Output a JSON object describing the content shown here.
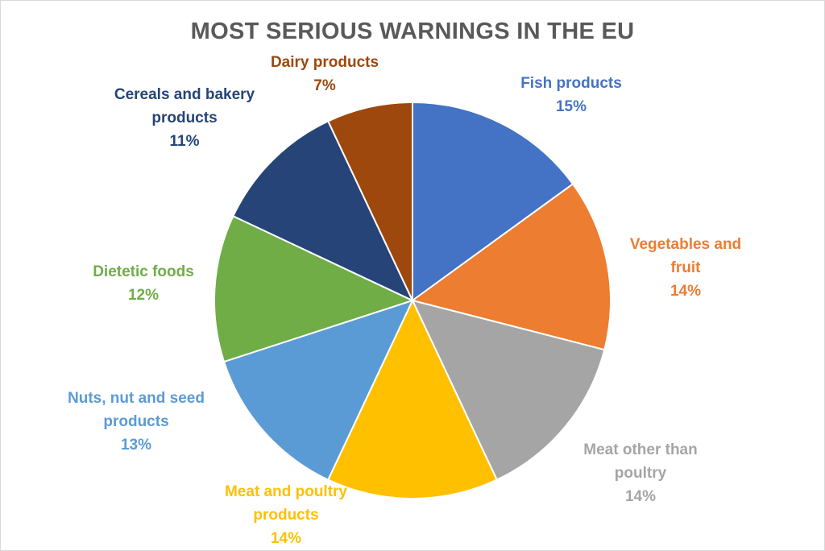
{
  "chart_data": {
    "type": "pie",
    "title": "MOST SERIOUS WARNINGS IN THE EU",
    "categories": [
      "Fish products",
      "Vegetables and fruit",
      "Meat other than poultry",
      "Meat and poultry products",
      "Nuts, nut and seed products",
      "Dietetic foods",
      "Cereals and bakery products",
      "Dairy products"
    ],
    "values": [
      15,
      14,
      14,
      14,
      13,
      12,
      11,
      7
    ],
    "labels": [
      {
        "name": "Fish products",
        "pct": "15%"
      },
      {
        "name": "Vegetables and\nfruit",
        "pct": "14%"
      },
      {
        "name": "Meat other than\npoultry",
        "pct": "14%"
      },
      {
        "name": "Meat and poultry\nproducts",
        "pct": "14%"
      },
      {
        "name": "Nuts, nut and seed\nproducts",
        "pct": "13%"
      },
      {
        "name": "Dietetic foods",
        "pct": "12%"
      },
      {
        "name": "Cereals and bakery\nproducts",
        "pct": "11%"
      },
      {
        "name": "Dairy products",
        "pct": "7%"
      }
    ],
    "colors": [
      "#4472C4",
      "#ED7D31",
      "#A5A5A5",
      "#FFC000",
      "#5B9BD5",
      "#70AD47",
      "#264478",
      "#9E480E"
    ],
    "legend": "none",
    "start_angle": "12 o'clock, clockwise"
  }
}
